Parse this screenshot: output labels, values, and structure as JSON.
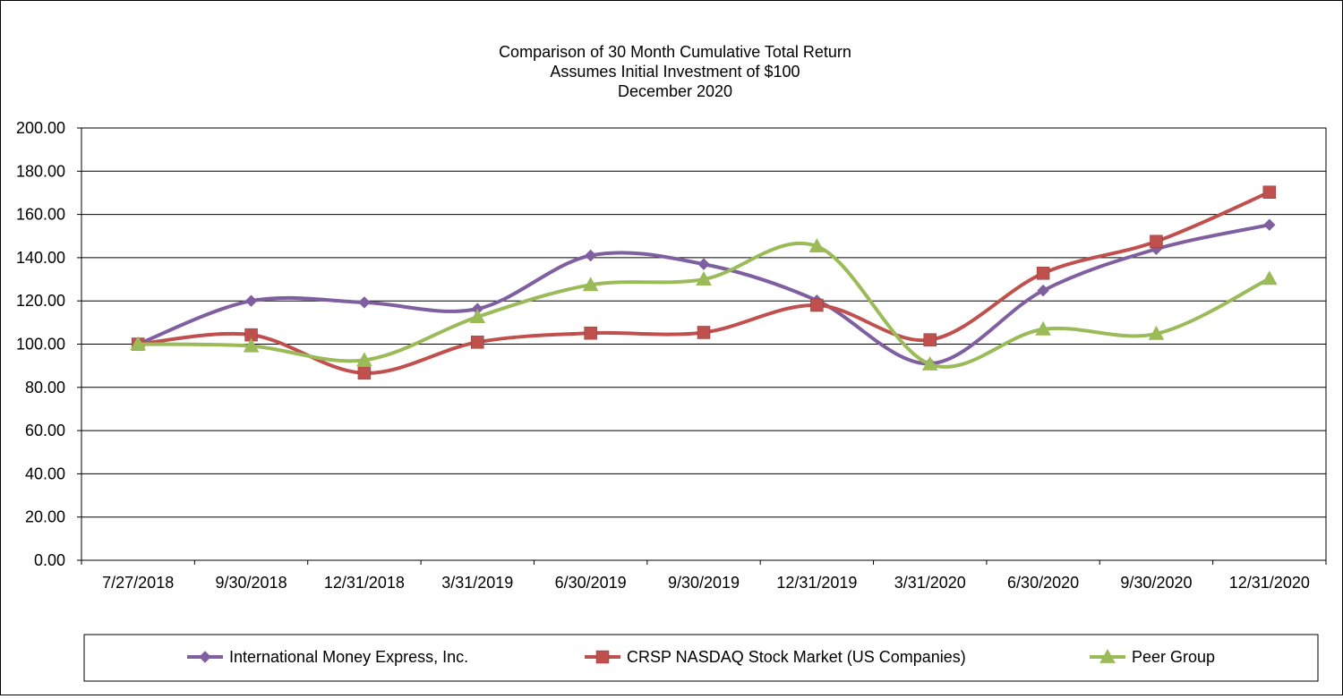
{
  "chart_data": {
    "type": "line",
    "title": [
      "Comparison of 30 Month Cumulative Total Return",
      "Assumes Initial Investment of $100",
      "December 2020"
    ],
    "categories": [
      "7/27/2018",
      "9/30/2018",
      "12/31/2018",
      "3/31/2019",
      "6/30/2019",
      "9/30/2019",
      "12/31/2019",
      "3/31/2020",
      "6/30/2020",
      "9/30/2020",
      "12/31/2020"
    ],
    "ylim": [
      0,
      200
    ],
    "yticks": [
      "0.00",
      "20.00",
      "40.00",
      "60.00",
      "80.00",
      "100.00",
      "120.00",
      "140.00",
      "160.00",
      "180.00",
      "200.00"
    ],
    "grid": true,
    "legend_position": "bottom",
    "series": [
      {
        "name": "International Money Express, Inc.",
        "color": "#7f5fa0",
        "marker": "diamond",
        "values": [
          100.0,
          120.0,
          119.3,
          116.3,
          141.0,
          137.0,
          120.2,
          91.0,
          124.8,
          144.0,
          155.2
        ]
      },
      {
        "name": "CRSP NASDAQ Stock Market (US Companies)",
        "color": "#c0504d",
        "marker": "square",
        "values": [
          100.0,
          104.3,
          86.6,
          100.9,
          105.1,
          105.4,
          118.0,
          102.0,
          132.8,
          147.5,
          170.3
        ]
      },
      {
        "name": "Peer Group",
        "color": "#9bbb59",
        "marker": "triangle",
        "values": [
          100.0,
          99.1,
          92.6,
          112.6,
          127.4,
          130.0,
          145.3,
          90.7,
          106.9,
          104.8,
          130.3
        ]
      }
    ]
  }
}
